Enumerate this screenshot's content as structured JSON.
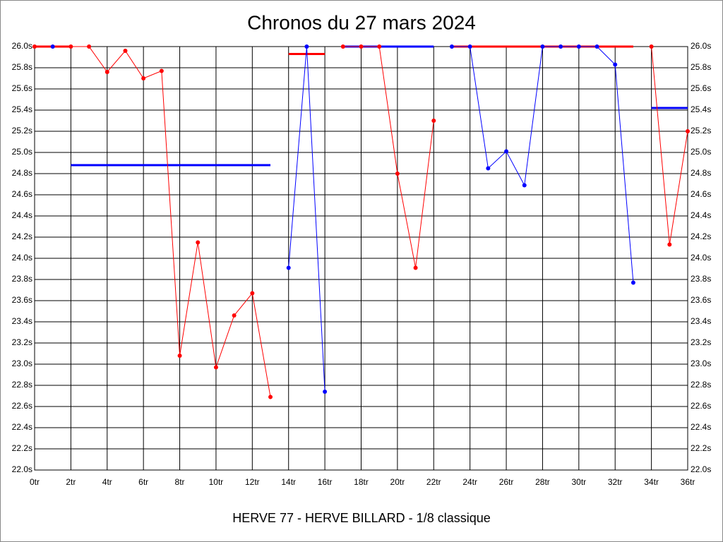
{
  "chart_data": {
    "type": "line",
    "title": "Chronos du 27 mars 2024",
    "subtitle": "HERVE 77 - HERVE BILLARD - 1/8 classique",
    "x": [
      0,
      1,
      2,
      3,
      4,
      5,
      6,
      7,
      8,
      9,
      10,
      11,
      12,
      13,
      14,
      15,
      16,
      17,
      18,
      19,
      20,
      21,
      22,
      23,
      24,
      25,
      26,
      27,
      28,
      29,
      30,
      31,
      32,
      33,
      34,
      35,
      36
    ],
    "series": [
      {
        "color": "#ff0000",
        "values": [
          26.0,
          null,
          26.0,
          26.0,
          25.76,
          25.96,
          25.7,
          25.77,
          23.08,
          24.15,
          22.97,
          23.46,
          23.67,
          22.69,
          null,
          null,
          null,
          26.0,
          26.0,
          26.0,
          24.8,
          23.91,
          25.3,
          null,
          null,
          null,
          null,
          null,
          null,
          null,
          null,
          null,
          null,
          null,
          26.0,
          24.13,
          25.2
        ]
      },
      {
        "color": "#0000ff",
        "values": [
          null,
          26.0,
          null,
          null,
          null,
          null,
          null,
          null,
          null,
          null,
          null,
          null,
          null,
          null,
          23.91,
          26.0,
          22.74,
          null,
          null,
          null,
          null,
          null,
          null,
          26.0,
          26.0,
          24.85,
          25.01,
          24.69,
          26.0,
          26.0,
          26.0,
          26.0,
          25.83,
          23.77,
          null,
          null,
          null
        ]
      }
    ],
    "reference_lines": [
      {
        "color": "#ff0000",
        "x": [
          0,
          2
        ],
        "value": 26.0
      },
      {
        "color": "#0000ff",
        "x": [
          2,
          13
        ],
        "value": 24.88
      },
      {
        "color": "#ff0000",
        "x": [
          14,
          16
        ],
        "value": 25.93
      },
      {
        "color": "#0000ff",
        "x": [
          17,
          22
        ],
        "value": 26.0
      },
      {
        "color": "#ff0000",
        "x": [
          23,
          33
        ],
        "value": 26.0
      },
      {
        "color": "#0000ff",
        "x": [
          34,
          36
        ],
        "value": 25.42
      }
    ],
    "xlim": [
      0,
      36
    ],
    "xticks": [
      {
        "value": 0,
        "label": "0tr"
      },
      {
        "value": 2,
        "label": "2tr"
      },
      {
        "value": 4,
        "label": "4tr"
      },
      {
        "value": 6,
        "label": "6tr"
      },
      {
        "value": 8,
        "label": "8tr"
      },
      {
        "value": 10,
        "label": "10tr"
      },
      {
        "value": 12,
        "label": "12tr"
      },
      {
        "value": 14,
        "label": "14tr"
      },
      {
        "value": 16,
        "label": "16tr"
      },
      {
        "value": 18,
        "label": "18tr"
      },
      {
        "value": 20,
        "label": "20tr"
      },
      {
        "value": 22,
        "label": "22tr"
      },
      {
        "value": 24,
        "label": "24tr"
      },
      {
        "value": 26,
        "label": "26tr"
      },
      {
        "value": 28,
        "label": "28tr"
      },
      {
        "value": 30,
        "label": "30tr"
      },
      {
        "value": 32,
        "label": "32tr"
      },
      {
        "value": 34,
        "label": "34tr"
      },
      {
        "value": 36,
        "label": "36tr"
      }
    ],
    "ylim": [
      22.0,
      26.0
    ],
    "yticks": [
      {
        "value": 22.0,
        "label": "22.0s"
      },
      {
        "value": 22.2,
        "label": "22.2s"
      },
      {
        "value": 22.4,
        "label": "22.4s"
      },
      {
        "value": 22.6,
        "label": "22.6s"
      },
      {
        "value": 22.8,
        "label": "22.8s"
      },
      {
        "value": 23.0,
        "label": "23.0s"
      },
      {
        "value": 23.2,
        "label": "23.2s"
      },
      {
        "value": 23.4,
        "label": "23.4s"
      },
      {
        "value": 23.6,
        "label": "23.6s"
      },
      {
        "value": 23.8,
        "label": "23.8s"
      },
      {
        "value": 24.0,
        "label": "24.0s"
      },
      {
        "value": 24.2,
        "label": "24.2s"
      },
      {
        "value": 24.4,
        "label": "24.4s"
      },
      {
        "value": 24.6,
        "label": "24.6s"
      },
      {
        "value": 24.8,
        "label": "24.8s"
      },
      {
        "value": 25.0,
        "label": "25.0s"
      },
      {
        "value": 25.2,
        "label": "25.2s"
      },
      {
        "value": 25.4,
        "label": "25.4s"
      },
      {
        "value": 25.6,
        "label": "25.6s"
      },
      {
        "value": 25.8,
        "label": "25.8s"
      },
      {
        "value": 26.0,
        "label": "26.0s"
      }
    ],
    "grid": true
  }
}
